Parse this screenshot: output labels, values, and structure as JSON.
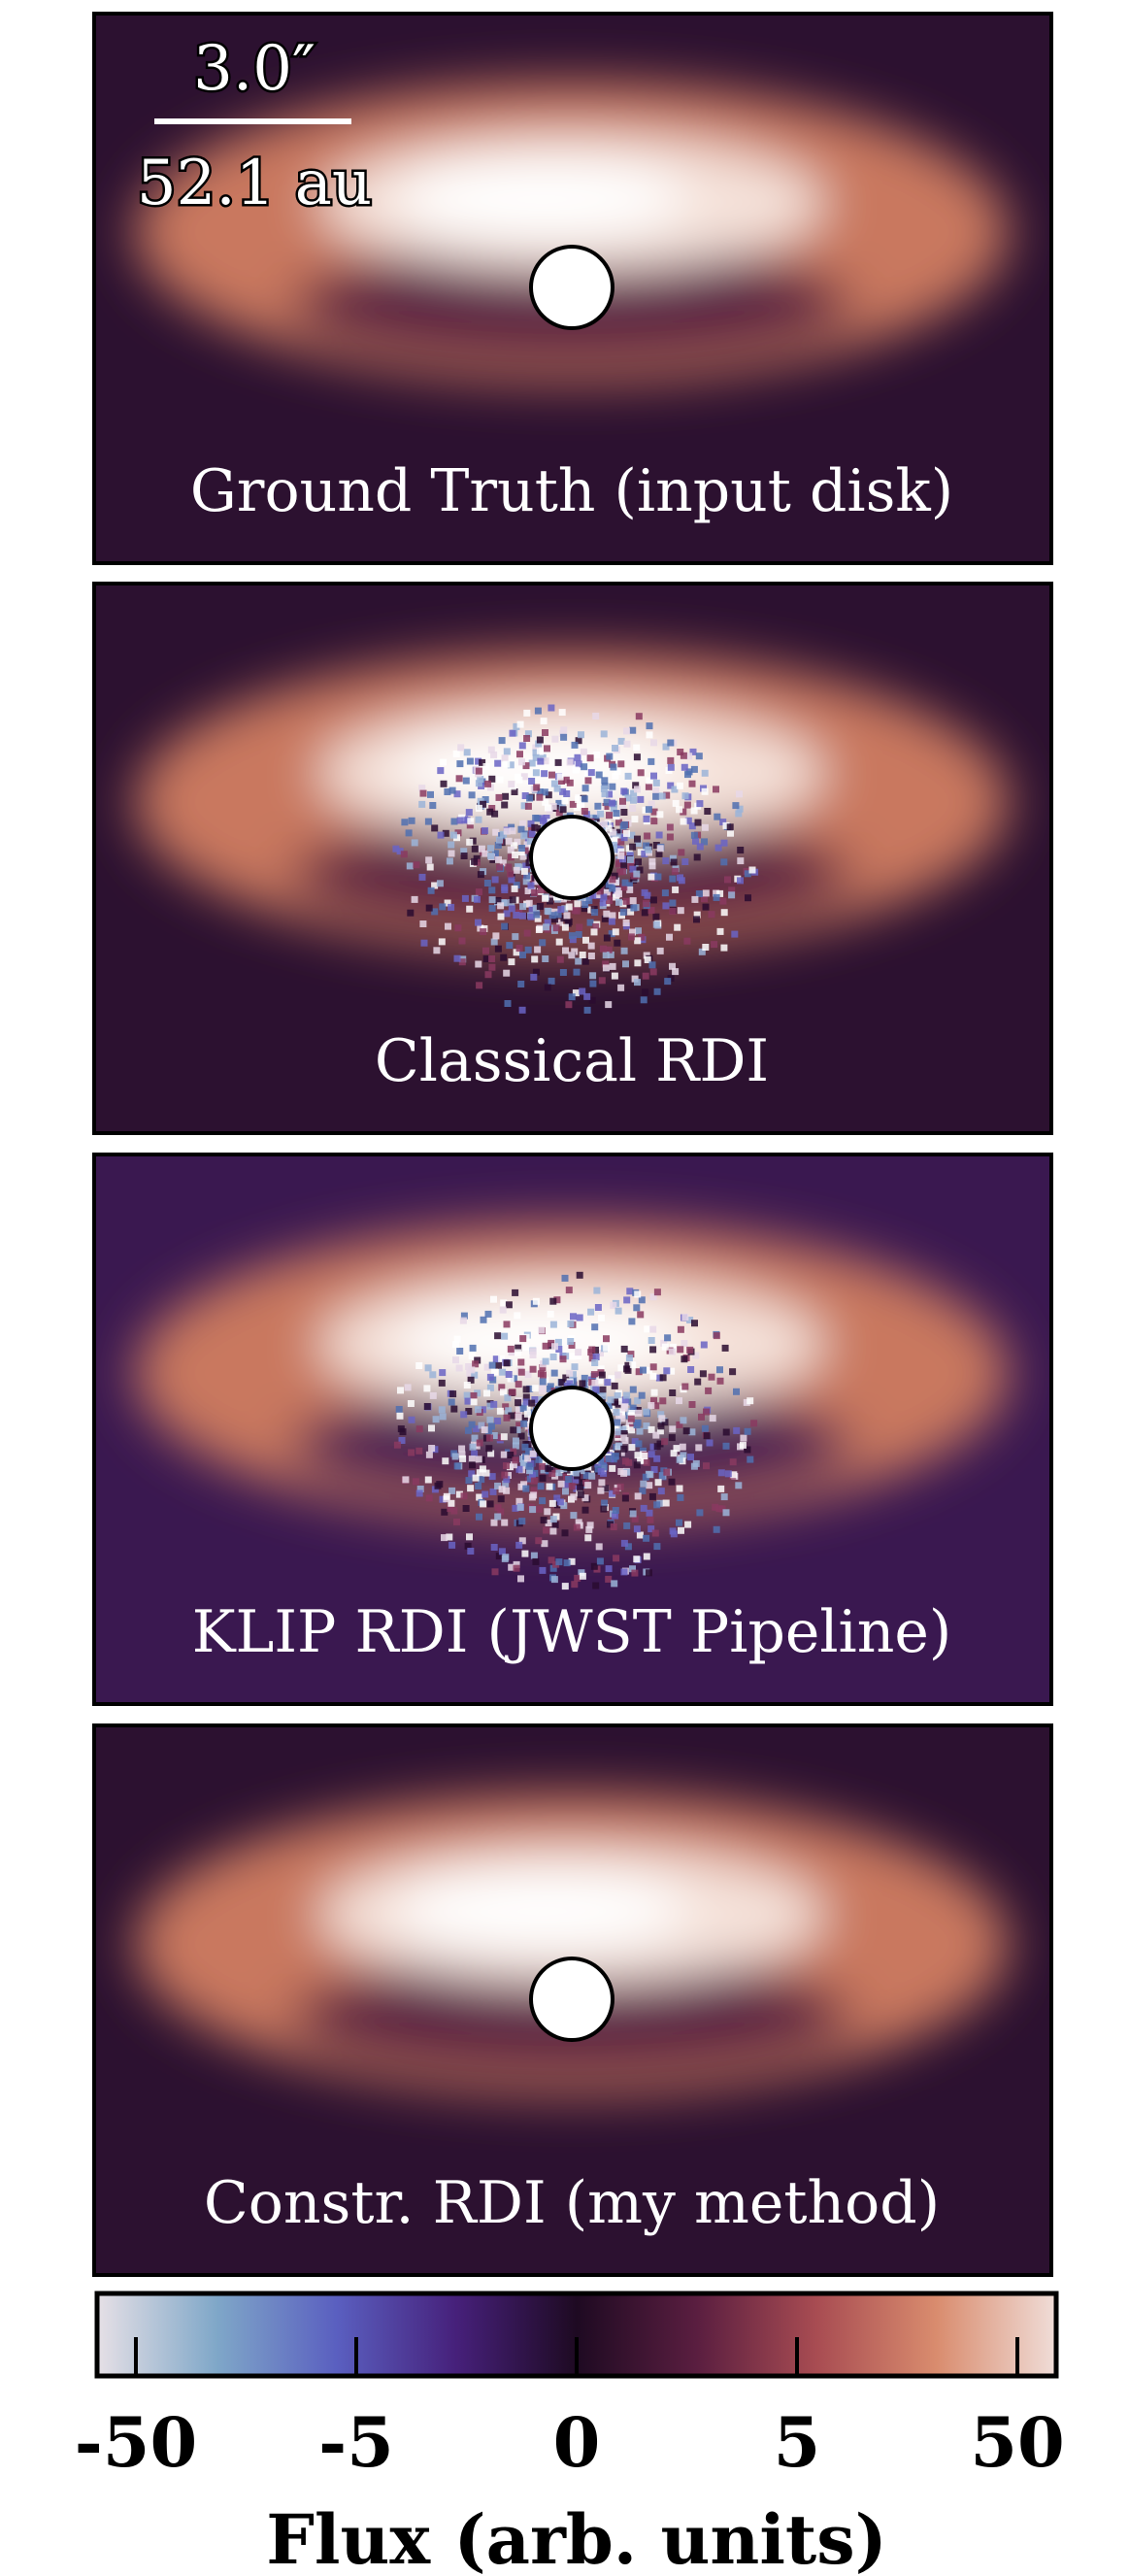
{
  "panels": [
    {
      "label": "Ground Truth (input disk)",
      "noise": false,
      "background": "#2c1130"
    },
    {
      "label": "Classical RDI",
      "noise": true,
      "background": "#2c1130"
    },
    {
      "label": "KLIP RDI (JWST Pipeline)",
      "noise": true,
      "background": "#3a1850"
    },
    {
      "label": "Constr. RDI (my method)",
      "noise": false,
      "background": "#2c1130"
    }
  ],
  "scale_bar": {
    "angular": "3.0″",
    "physical": "52.1 au"
  },
  "colorbar": {
    "label": "Flux (arb. units)",
    "scale": "symlog",
    "linthresh": 5,
    "lim": [
      -75,
      75
    ],
    "ticks": [
      -50,
      -5,
      0,
      5,
      50
    ],
    "colors": [
      "#e6e0e6",
      "#7fa7c8",
      "#5a5fc0",
      "#46207a",
      "#1e0a22",
      "#5a1e40",
      "#a84c52",
      "#d98c6e",
      "#f0ddd8"
    ]
  }
}
